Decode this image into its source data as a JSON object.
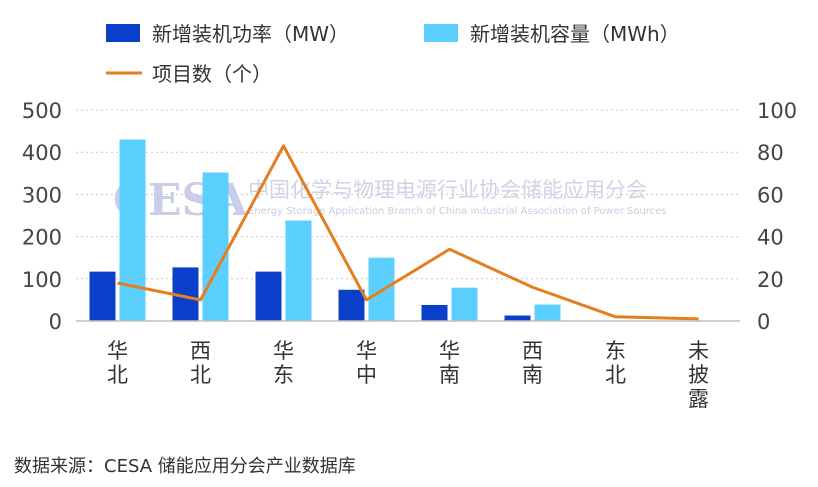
{
  "chart_data": {
    "type": "bar",
    "categories": [
      "华北",
      "西北",
      "华东",
      "华中",
      "华南",
      "西南",
      "东北",
      "未披露"
    ],
    "series": [
      {
        "name": "新增装机功率（MW）",
        "kind": "bar",
        "axis": "left",
        "color": "#0a3fc9",
        "values": [
          117,
          127,
          117,
          74,
          38,
          13,
          0,
          0
        ]
      },
      {
        "name": "新增装机容量（MWh）",
        "kind": "bar",
        "axis": "left",
        "color": "#5bd0ff",
        "values": [
          430,
          352,
          238,
          150,
          79,
          39,
          0,
          0
        ]
      },
      {
        "name": "项目数（个）",
        "kind": "line",
        "axis": "right",
        "color": "#e57e1e",
        "values": [
          18,
          10,
          83,
          10,
          34,
          16,
          2,
          1
        ]
      }
    ],
    "y_left": {
      "lim": [
        0,
        500
      ],
      "ticks": [
        "0",
        "100",
        "200",
        "300",
        "400",
        "500"
      ]
    },
    "y_right": {
      "lim": [
        0,
        100
      ],
      "ticks": [
        "0",
        "20",
        "40",
        "60",
        "80",
        "100"
      ]
    },
    "grid": "horizontal-dotted",
    "legend": "top"
  },
  "watermark": {
    "logo": "CESA",
    "cn": "中国化学与物理电源行业协会储能应用分会",
    "en": "Energy Storage Application Branch of China Industrial Association of Power Sources"
  },
  "source": "数据来源：CESA 储能应用分会产业数据库"
}
